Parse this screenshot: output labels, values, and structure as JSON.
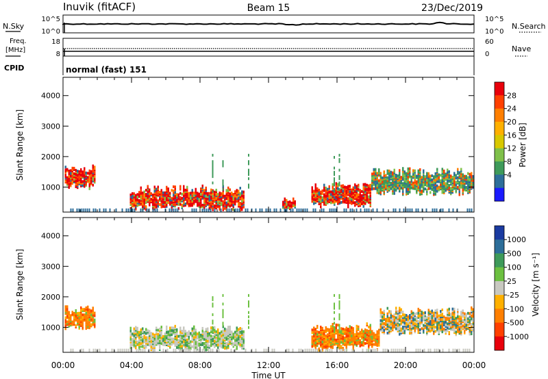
{
  "header": {
    "station": "Inuvik (fitACF)",
    "beam": "Beam 15",
    "date": "23/Dec/2019"
  },
  "strips": {
    "nsky_label": "N.Sky",
    "nsearch_label": "N.Search",
    "freq_label_1": "Freq.",
    "freq_label_2": "[MHz]",
    "cpid_label": "CPID",
    "nave_label": "Nave",
    "noise_ticks_left": [
      "10^5",
      "10^0"
    ],
    "noise_ticks_right": [
      "10^5",
      "10^0"
    ],
    "freq_ticks": [
      "18",
      "8"
    ],
    "nave_ticks": [
      "60",
      "0"
    ],
    "cpid_text": "normal (fast) 151"
  },
  "chart_data": [
    {
      "type": "heatmap",
      "name": "power",
      "ylabel": "Slant Range [km]",
      "xlabel": "",
      "ylim": [
        180,
        4600
      ],
      "yticks": [
        "4000",
        "3000",
        "2000",
        "1000"
      ],
      "xticks": [
        "00:00",
        "04:00",
        "08:00",
        "12:00",
        "16:00",
        "20:00",
        "00:00"
      ],
      "colorbar": {
        "label": "Power [dB]",
        "ticks": [
          "28",
          "24",
          "20",
          "16",
          "12",
          "8",
          "4"
        ],
        "colors": [
          "#e8000b",
          "#ff4000",
          "#ff7f00",
          "#ffb000",
          "#d8c800",
          "#7fc04a",
          "#3e9a5a",
          "#2d6e9a",
          "#1a1aff"
        ]
      },
      "regions": [
        {
          "t0": 0.1,
          "t1": 1.9,
          "r_lo": 900,
          "r_hi": 1700,
          "level": "high"
        },
        {
          "t0": 3.9,
          "t1": 10.5,
          "r_lo": 200,
          "r_hi": 1000,
          "level": "high"
        },
        {
          "t0": 12.8,
          "t1": 13.5,
          "r_lo": 200,
          "r_hi": 600,
          "level": "high"
        },
        {
          "t0": 14.5,
          "t1": 18.0,
          "r_lo": 300,
          "r_hi": 1100,
          "level": "high"
        },
        {
          "t0": 18.0,
          "t1": 24.0,
          "r_lo": 700,
          "r_hi": 1600,
          "level": "medium"
        }
      ]
    },
    {
      "type": "heatmap",
      "name": "velocity",
      "ylabel": "Slant Range [km]",
      "xlabel": "Time UT",
      "ylim": [
        180,
        4600
      ],
      "yticks": [
        "4000",
        "3000",
        "2000",
        "1000"
      ],
      "xticks": [
        "00:00",
        "04:00",
        "08:00",
        "12:00",
        "16:00",
        "20:00",
        "00:00"
      ],
      "colorbar": {
        "label": "Velocity [m s⁻¹]",
        "ticks": [
          "1000",
          "500",
          "100",
          "25",
          "-25",
          "-100",
          "-500",
          "-1000"
        ],
        "colors": [
          "#1a3aa0",
          "#2d6e9a",
          "#3e9a5a",
          "#6cc040",
          "#c8c8c0",
          "#ffb000",
          "#ff7f00",
          "#ff4000",
          "#e8000b"
        ]
      },
      "regions": [
        {
          "t0": 0.1,
          "t1": 1.9,
          "r_lo": 900,
          "r_hi": 1700,
          "level": "negative"
        },
        {
          "t0": 3.9,
          "t1": 10.5,
          "r_lo": 200,
          "r_hi": 1000,
          "level": "near-zero"
        },
        {
          "t0": 14.5,
          "t1": 18.5,
          "r_lo": 200,
          "r_hi": 1100,
          "level": "negative"
        },
        {
          "t0": 18.5,
          "t1": 24.0,
          "r_lo": 700,
          "r_hi": 1600,
          "level": "mixed"
        }
      ]
    }
  ]
}
